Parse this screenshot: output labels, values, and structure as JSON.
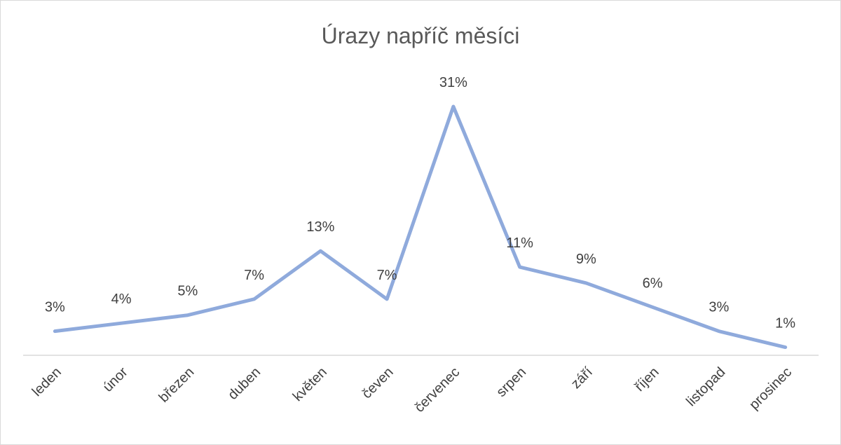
{
  "chart_data": {
    "type": "line",
    "title": "Úrazy napříč měsíci",
    "categories": [
      "leden",
      "únor",
      "březen",
      "duben",
      "květen",
      "čeven",
      "červenec",
      "srpen",
      "září",
      "říjen",
      "listopad",
      "prosinec"
    ],
    "values": [
      3,
      4,
      5,
      7,
      13,
      7,
      31,
      11,
      9,
      6,
      3,
      1
    ],
    "value_labels": [
      "3%",
      "4%",
      "5%",
      "7%",
      "13%",
      "7%",
      "31%",
      "11%",
      "9%",
      "6%",
      "3%",
      "1%"
    ],
    "color": "#8faadc"
  }
}
